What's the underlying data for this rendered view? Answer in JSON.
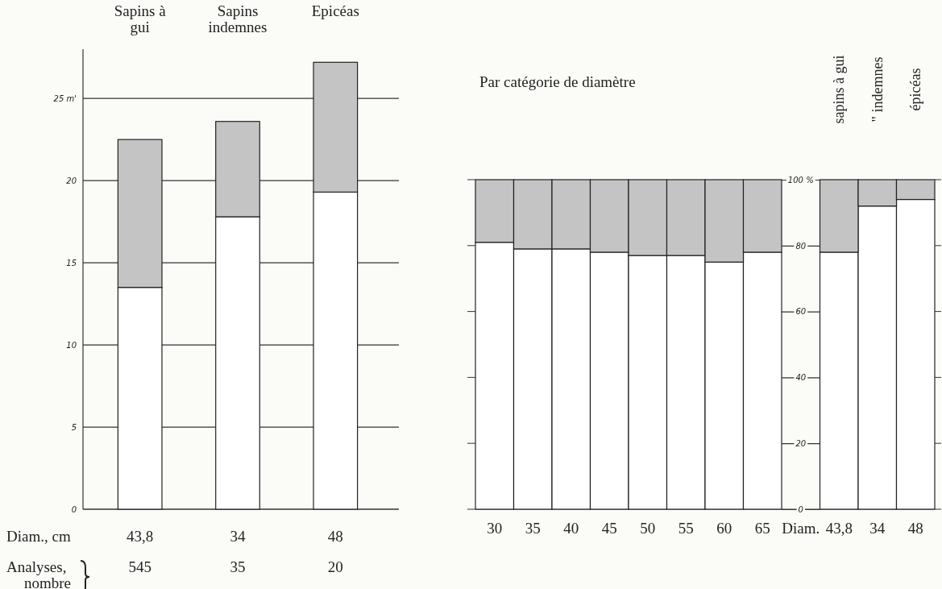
{
  "chart_data": [
    {
      "type": "bar",
      "stacked": true,
      "categories": [
        "Sapins à gui",
        "Sapins indemnes",
        "Epicéas"
      ],
      "series": [
        {
          "color": "#ffffff",
          "values": [
            13.5,
            17.8,
            19.3
          ]
        },
        {
          "color": "#c4c4c4",
          "values": [
            9.0,
            5.8,
            7.9
          ]
        }
      ],
      "ylim": [
        0,
        28
      ],
      "yticks": [
        0,
        5,
        10,
        15,
        20,
        {
          "value": 25,
          "label": "25 m'"
        }
      ],
      "grid": "y",
      "annotations": [
        "Diam., cm",
        "Analyses, nombre",
        "43,8",
        "34",
        "48",
        "545",
        "35",
        "20"
      ]
    },
    {
      "type": "bar",
      "stacked": true,
      "title": "Par catégorie de diamètre",
      "categories": [
        "30",
        "35",
        "40",
        "45",
        "50",
        "55",
        "60",
        "65",
        "Diam.",
        "43,8",
        "34",
        "48"
      ],
      "series": [
        {
          "color": "#ffffff",
          "values": [
            81,
            79,
            79,
            78,
            77,
            77,
            75,
            78,
            null,
            78,
            92,
            94
          ]
        },
        {
          "color": "#c4c4c4",
          "values": [
            19,
            21,
            21,
            22,
            23,
            23,
            25,
            22,
            null,
            22,
            8,
            6
          ]
        }
      ],
      "ylim": [
        0,
        100
      ],
      "yticks": [
        0,
        20,
        40,
        60,
        80,
        {
          "value": 100,
          "label": "100 %"
        }
      ],
      "annotations": [
        "sapins à gui",
        "\" indemnes",
        "épicéas"
      ]
    }
  ]
}
